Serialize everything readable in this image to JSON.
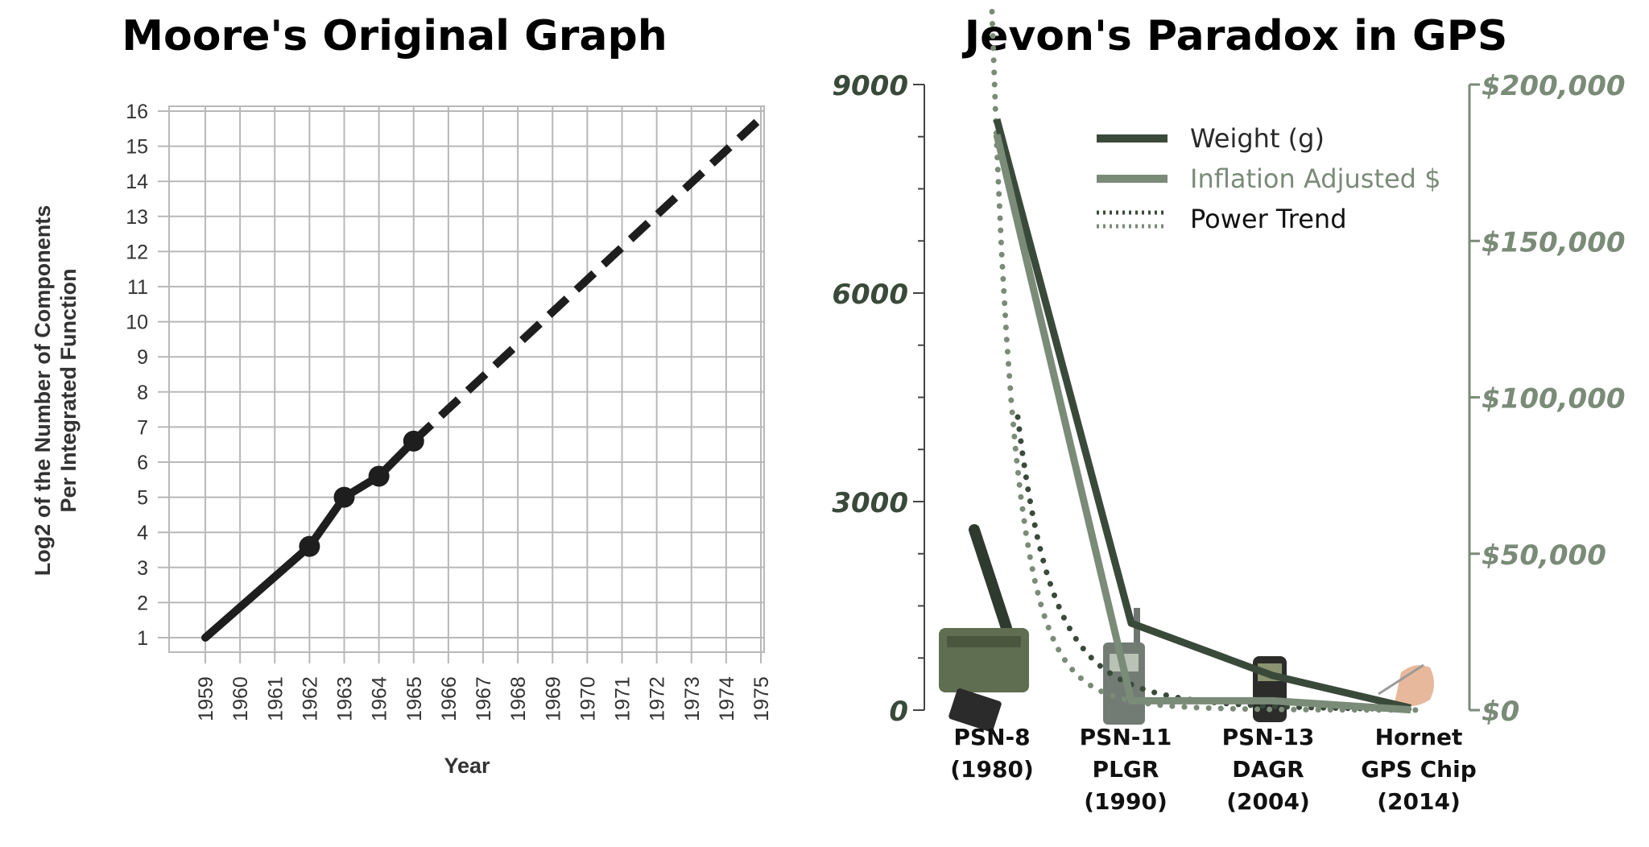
{
  "left_chart": {
    "title": "Moore's Original Graph",
    "chart_data": {
      "type": "line",
      "title": "Moore's Original Graph",
      "xlabel": "Year",
      "ylabel_lines": [
        "Log2 of the Number of Components",
        "Per Integrated Function"
      ],
      "x_ticks": [
        "1959",
        "1960",
        "1961",
        "1962",
        "1963",
        "1964",
        "1965",
        "1966",
        "1967",
        "1968",
        "1969",
        "1970",
        "1971",
        "1972",
        "1973",
        "1974",
        "1975"
      ],
      "y_ticks": [
        "1",
        "2",
        "3",
        "4",
        "5",
        "6",
        "7",
        "8",
        "9",
        "10",
        "11",
        "12",
        "13",
        "14",
        "15",
        "16"
      ],
      "xlim": [
        1959,
        1975
      ],
      "ylim": [
        1,
        16
      ],
      "grid": true,
      "series": [
        {
          "style": "solid",
          "x": [
            1959,
            1962,
            1963,
            1964,
            1965
          ],
          "y": [
            1,
            3.6,
            5,
            5.6,
            6.6
          ]
        },
        {
          "style": "dashed",
          "x": [
            1965,
            1975
          ],
          "y": [
            6.6,
            15.8
          ]
        }
      ],
      "markers": {
        "x": [
          1962,
          1963,
          1964,
          1965
        ],
        "y": [
          3.6,
          5,
          5.6,
          6.6
        ]
      }
    }
  },
  "right_chart": {
    "title": "Jevon's Paradox in GPS",
    "chart_data": {
      "type": "line",
      "title": "Jevon's Paradox in GPS",
      "categories": [
        "PSN-8 (1980)",
        "PSN-11 PLGR (1990)",
        "PSN-13 DAGR (2004)",
        "Hornet GPS Chip (2014)"
      ],
      "left_axis": {
        "ticks": [
          "9000",
          "6000",
          "3000",
          "0"
        ],
        "ylim": [
          0,
          9000
        ]
      },
      "right_axis": {
        "ticks": [
          "$200,000",
          "$150,000",
          "$100,000",
          "$50,000",
          "$0"
        ],
        "ylim": [
          0,
          200000
        ]
      },
      "series": [
        {
          "name": "Weight (g)",
          "axis": "left",
          "color": "#3a4a3a",
          "x": [
            1980,
            1990,
            2004,
            2014
          ],
          "values": [
            8500,
            1250,
            500,
            30
          ]
        },
        {
          "name": "Inflation Adjusted $",
          "axis": "right",
          "color": "#7a8b78",
          "x": [
            1980,
            1990,
            2004,
            2014
          ],
          "values": [
            184000,
            3000,
            3000,
            100
          ]
        }
      ],
      "trend_name": "Power Trend",
      "legend": [
        "Weight (g)",
        "Inflation Adjusted $",
        "Power Trend"
      ],
      "legend_position": "top-right"
    },
    "device_labels": [
      [
        "PSN-8",
        "(1980)"
      ],
      [
        "PSN-11",
        "PLGR",
        "(1990)"
      ],
      [
        "PSN-13",
        "DAGR",
        "(2004)"
      ],
      [
        "Hornet",
        "GPS Chip",
        "(2014)"
      ]
    ],
    "colors": {
      "weight": "#3a4a3a",
      "cost": "#7a8b78"
    }
  }
}
